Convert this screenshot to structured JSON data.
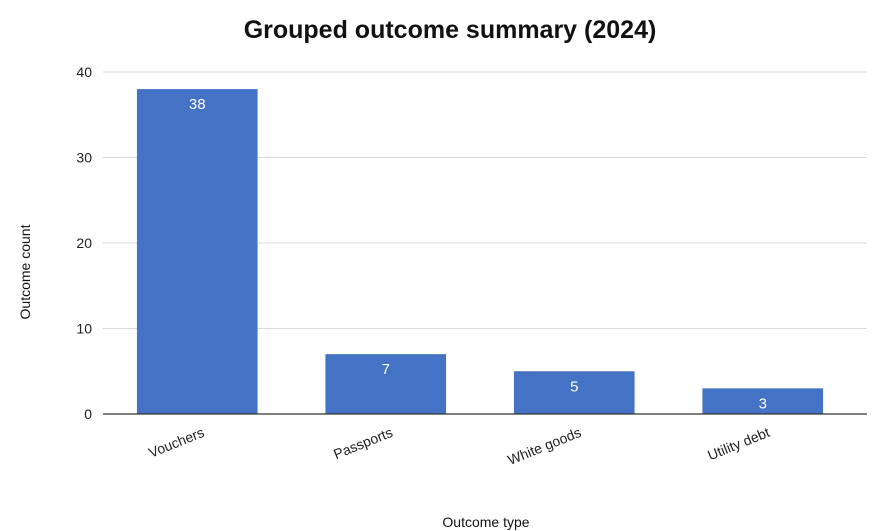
{
  "chart_data": {
    "type": "bar",
    "title": "Grouped outcome summary (2024)",
    "xlabel": "Outcome type",
    "ylabel": "Outcome count",
    "categories": [
      "Vouchers",
      "Passports",
      "White goods",
      "Utility debt"
    ],
    "values": [
      38,
      7,
      5,
      3
    ],
    "data_labels": [
      "38",
      "7",
      "5",
      "3"
    ],
    "ylim": [
      0,
      40
    ],
    "yticks": [
      0,
      10,
      20,
      30,
      40
    ],
    "grid": true,
    "legend": "none",
    "bar_color": "#4472c4"
  }
}
